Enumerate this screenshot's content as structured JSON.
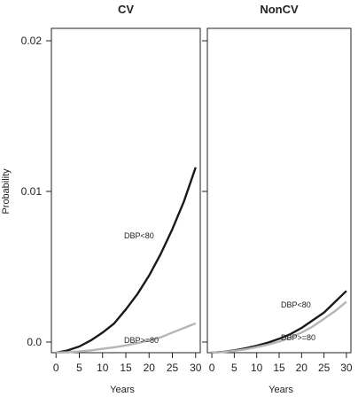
{
  "chart_data": {
    "type": "line",
    "ylabel": "Probability",
    "ylim": [
      0,
      0.021
    ],
    "y_ticks": [
      "0.0",
      "0.01",
      "0.02"
    ],
    "xlabel": "Years",
    "xlim": [
      -1,
      31
    ],
    "x_ticks": [
      "0",
      "5",
      "10",
      "15",
      "20",
      "25",
      "30"
    ],
    "grid": false,
    "colors": {
      "dbp_lt_80": "#1a1a1a",
      "dbp_ge_80": "#b5b5b5"
    },
    "panels": [
      {
        "title": "CV",
        "series": [
          {
            "name": "DBP<80",
            "x": [
              0,
              2.5,
              5,
              7.5,
              10,
              12.5,
              15,
              17.5,
              20,
              22.5,
              25,
              27.5,
              30
            ],
            "y": [
              0,
              0.00015,
              0.0004,
              0.0008,
              0.0013,
              0.0019,
              0.0028,
              0.0038,
              0.005,
              0.0064,
              0.008,
              0.0098,
              0.012
            ]
          },
          {
            "name": "DBP>=80",
            "x": [
              0,
              2.5,
              5,
              7.5,
              10,
              12.5,
              15,
              17.5,
              20,
              22.5,
              25,
              27.5,
              30
            ],
            "y": [
              0,
              3e-05,
              8e-05,
              0.00015,
              0.00025,
              0.00035,
              0.00047,
              0.00062,
              0.0008,
              0.001,
              0.0013,
              0.0016,
              0.0019
            ]
          }
        ]
      },
      {
        "title": "NonCV",
        "series": [
          {
            "name": "DBP<80",
            "x": [
              0,
              2.5,
              5,
              7.5,
              10,
              12.5,
              15,
              17.5,
              20,
              22.5,
              25,
              27.5,
              30
            ],
            "y": [
              0,
              5e-05,
              0.00015,
              0.00028,
              0.00045,
              0.00065,
              0.0009,
              0.0012,
              0.0016,
              0.0021,
              0.0026,
              0.0033,
              0.004
            ]
          },
          {
            "name": "DBP>=80",
            "x": [
              0,
              2.5,
              5,
              7.5,
              10,
              12.5,
              15,
              17.5,
              20,
              22.5,
              25,
              27.5,
              30
            ],
            "y": [
              0,
              4e-05,
              0.00012,
              0.00022,
              0.00036,
              0.00052,
              0.00072,
              0.00098,
              0.0013,
              0.0017,
              0.0022,
              0.0027,
              0.0033
            ]
          }
        ]
      }
    ]
  }
}
